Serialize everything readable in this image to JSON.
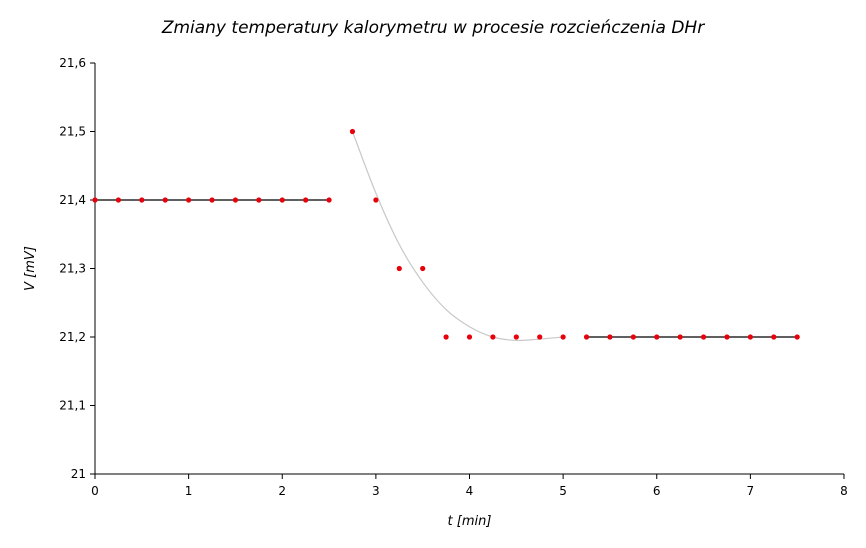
{
  "chart_data": {
    "type": "scatter",
    "title": "Zmiany temperatury kalorymetru w procesie rozcieńczenia DHr",
    "xlabel": "t [min]",
    "ylabel": "V [mV]",
    "xlim": [
      0,
      8
    ],
    "ylim": [
      21.0,
      21.6
    ],
    "x_ticks": [
      0,
      1,
      2,
      3,
      4,
      5,
      6,
      7,
      8
    ],
    "x_tick_labels": [
      "0",
      "1",
      "2",
      "3",
      "4",
      "5",
      "6",
      "7",
      "8"
    ],
    "y_ticks": [
      21.0,
      21.1,
      21.2,
      21.3,
      21.4,
      21.5,
      21.6
    ],
    "y_tick_labels": [
      "21",
      "21,1",
      "21,2",
      "21,3",
      "21,4",
      "21,5",
      "21,6"
    ],
    "grid": false,
    "legend": "none",
    "marker_color": "#e8000b",
    "line_color": "#000000",
    "fit_color": "#c8c8c8",
    "series": [
      {
        "x": [
          0,
          0.25,
          0.5,
          0.75,
          1,
          1.25,
          1.5,
          1.75,
          2,
          2.25,
          2.5,
          2.75,
          3,
          3.25,
          3.5,
          3.75,
          4,
          4.25,
          4.5,
          4.75,
          5,
          5.25,
          5.5,
          5.75,
          6,
          6.25,
          6.5,
          6.75,
          7,
          7.25,
          7.5
        ],
        "y": [
          21.4,
          21.4,
          21.4,
          21.4,
          21.4,
          21.4,
          21.4,
          21.4,
          21.4,
          21.4,
          21.4,
          21.5,
          21.4,
          21.3,
          21.3,
          21.2,
          21.2,
          21.2,
          21.2,
          21.2,
          21.2,
          21.2,
          21.2,
          21.2,
          21.2,
          21.2,
          21.2,
          21.2,
          21.2,
          21.2,
          21.2
        ]
      }
    ],
    "pre_period_line": {
      "x": [
        0,
        2.5
      ],
      "y": [
        21.4,
        21.4
      ]
    },
    "post_period_line": {
      "x": [
        5.25,
        7.5
      ],
      "y": [
        21.2,
        21.2
      ]
    },
    "main_period_fit": {
      "x": [
        2.75,
        3.0,
        3.25,
        3.5,
        3.75,
        4.0,
        4.25,
        4.5,
        4.75,
        5.0
      ],
      "y": [
        21.5,
        21.41,
        21.335,
        21.28,
        21.24,
        21.215,
        21.2,
        21.195,
        21.197,
        21.2
      ]
    }
  }
}
